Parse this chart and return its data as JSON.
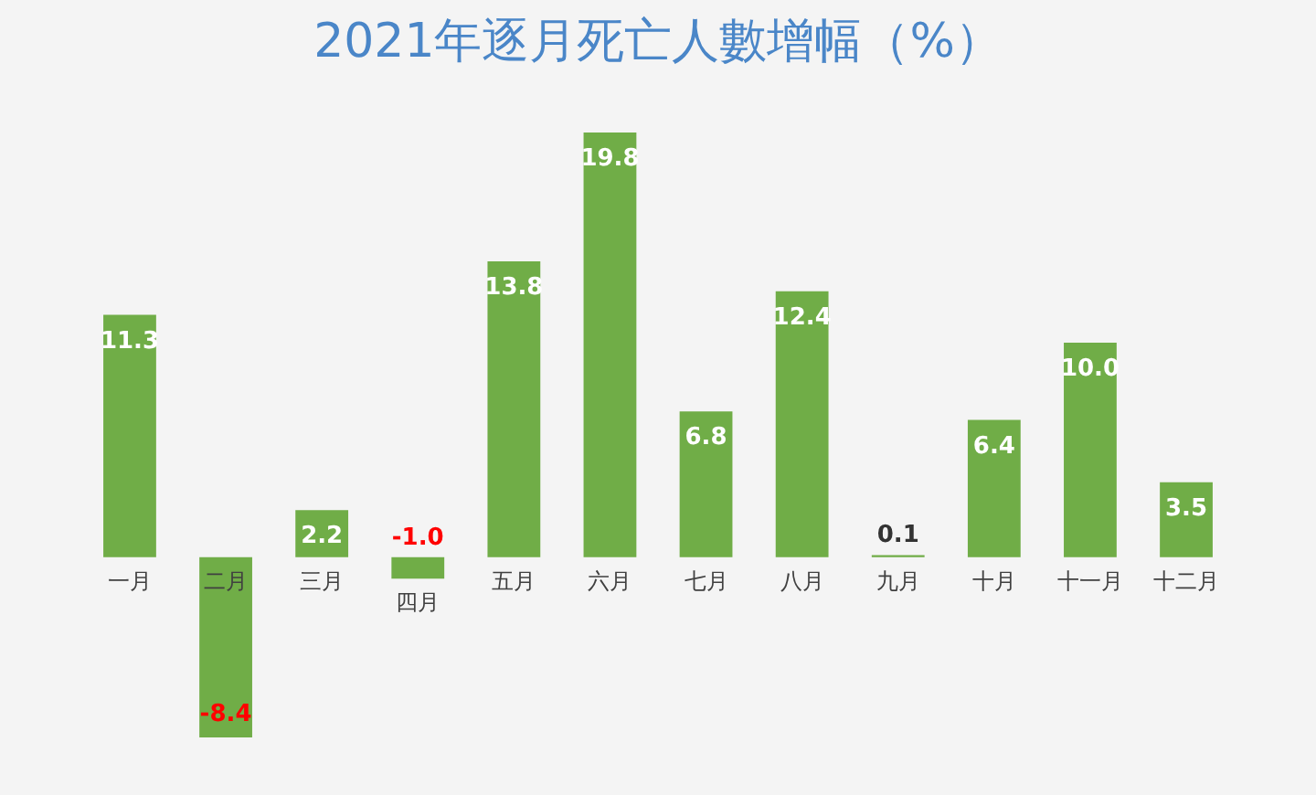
{
  "chart_data": {
    "type": "bar",
    "title": "2021年逐月死亡人數增幅（%）",
    "categories": [
      "一月",
      "二月",
      "三月",
      "四月",
      "五月",
      "六月",
      "七月",
      "八月",
      "九月",
      "十月",
      "十一月",
      "十二月"
    ],
    "values": [
      11.3,
      -8.4,
      2.2,
      -1.0,
      13.8,
      19.8,
      6.8,
      12.4,
      0.1,
      6.4,
      10.0,
      3.5
    ],
    "color": "#70ad47",
    "value_labels": [
      "11.3",
      "-8.4",
      "2.2",
      "-1.0",
      "13.8",
      "19.8",
      "6.8",
      "12.4",
      "0.1",
      "6.4",
      "10.0",
      "3.5"
    ]
  }
}
